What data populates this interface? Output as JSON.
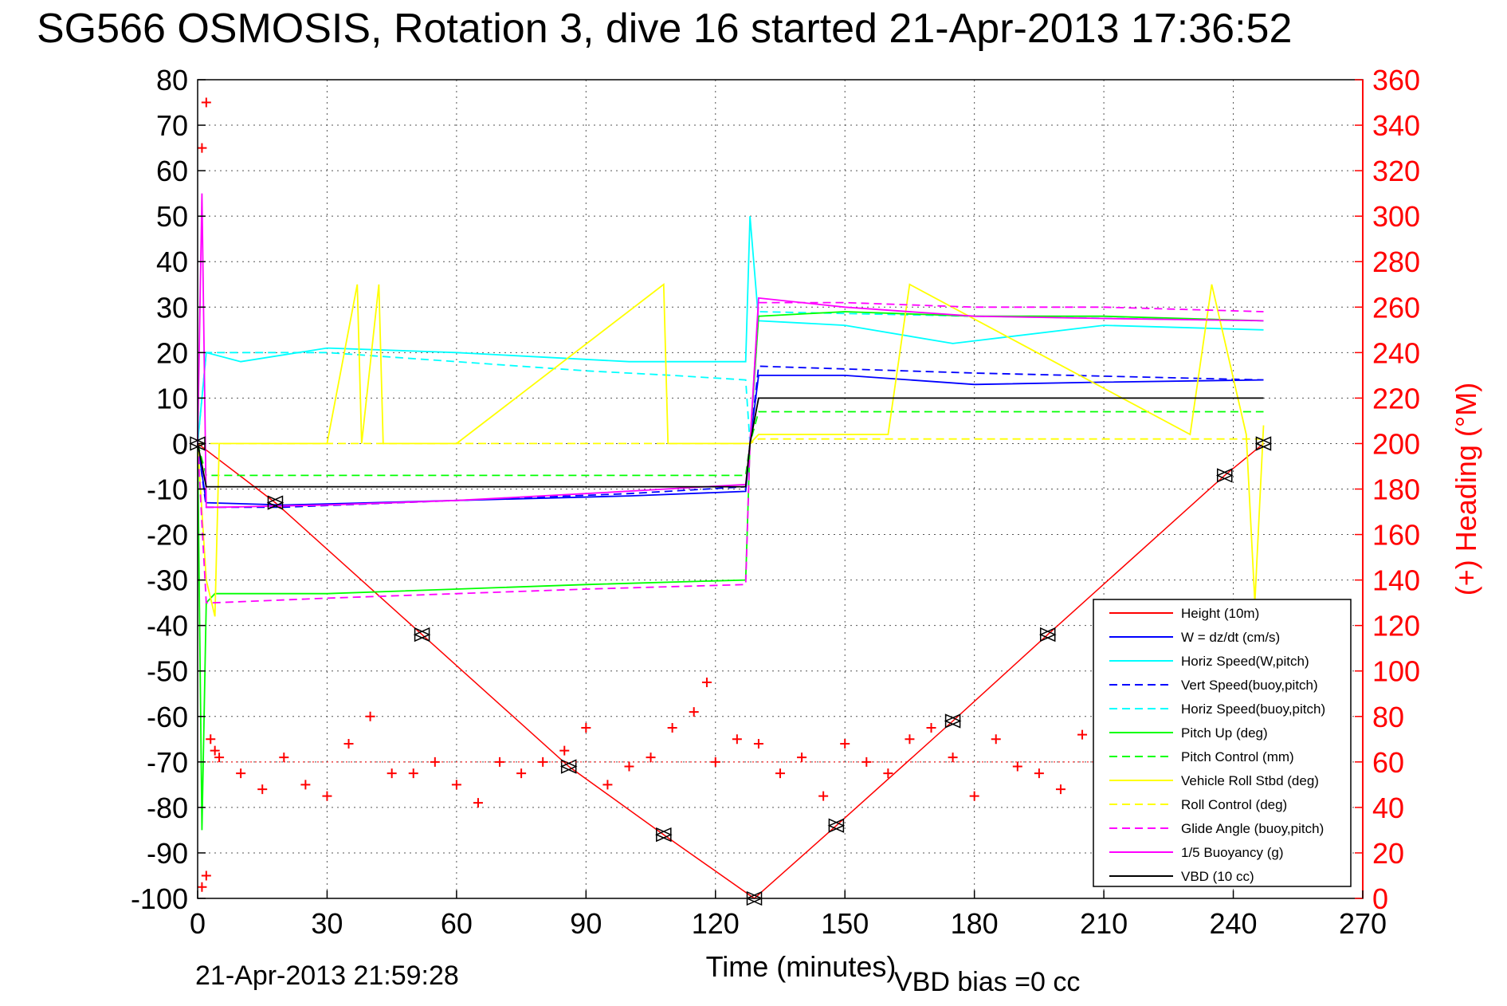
{
  "title": "SG566 OSMOSIS, Rotation 3, dive 16 started 21-Apr-2013 17:36:52",
  "timestamp": "21-Apr-2013 21:59:28",
  "vbd_bias": "VBD bias =0 cc",
  "chart_data": {
    "type": "line",
    "xlabel": "Time (minutes)",
    "ylabel": "",
    "y2label": "(+) Heading (°M)",
    "xlim": [
      0,
      270
    ],
    "ylim": [
      -100,
      80
    ],
    "y2lim": [
      0,
      360
    ],
    "xticks": [
      0,
      30,
      60,
      90,
      120,
      150,
      180,
      210,
      240,
      270
    ],
    "yticks": [
      80,
      70,
      60,
      50,
      40,
      30,
      20,
      10,
      0,
      -10,
      -20,
      -30,
      -40,
      -50,
      -60,
      -70,
      -80,
      -90,
      -100
    ],
    "y2ticks": [
      360,
      340,
      320,
      300,
      280,
      260,
      240,
      220,
      200,
      180,
      160,
      140,
      120,
      100,
      80,
      60,
      40,
      20,
      0
    ],
    "grid": true,
    "legend_position": "bottom-right",
    "colors": {
      "red": "#ff0000",
      "blue": "#0000ff",
      "cyan": "#00ffff",
      "green": "#00ff00",
      "yellow": "#ffff00",
      "magenta": "#ff00ff",
      "black": "#000000",
      "heading": "#ff0000"
    },
    "series": [
      {
        "name": "Height (10m)",
        "color": "red",
        "style": "solid",
        "x": [
          0,
          18,
          52,
          86,
          108,
          129,
          148,
          175,
          197,
          238,
          247
        ],
        "y": [
          0,
          -13,
          -42,
          -71,
          -86,
          -100,
          -84,
          -61,
          -42,
          -7,
          0
        ]
      },
      {
        "name": "W = dz/dt (cm/s)",
        "color": "blue",
        "style": "solid",
        "x": [
          0,
          2,
          20,
          60,
          100,
          127,
          128,
          130,
          150,
          180,
          210,
          247
        ],
        "y": [
          0,
          -13,
          -13.5,
          -12.5,
          -11.5,
          -10.5,
          0,
          15,
          15,
          13,
          13.5,
          14
        ]
      },
      {
        "name": "Horiz Speed(W,pitch)",
        "color": "cyan",
        "style": "solid",
        "x": [
          0,
          2,
          10,
          30,
          60,
          100,
          127,
          128,
          130,
          150,
          175,
          210,
          247
        ],
        "y": [
          0,
          20,
          18,
          21,
          20,
          18,
          18,
          50,
          27,
          26,
          22,
          26,
          25
        ]
      },
      {
        "name": "Vert Speed(buoy,pitch)",
        "color": "blue",
        "style": "dashed",
        "x": [
          0,
          2,
          20,
          60,
          100,
          127,
          128,
          130,
          180,
          247
        ],
        "y": [
          0,
          -14,
          -14,
          -12.5,
          -11,
          -9.5,
          0,
          17,
          15.5,
          14
        ]
      },
      {
        "name": "Horiz Speed(buoy,pitch)",
        "color": "cyan",
        "style": "dashed",
        "x": [
          0,
          2,
          30,
          60,
          90,
          110,
          127,
          128,
          130,
          180,
          247
        ],
        "y": [
          0,
          20,
          20,
          18,
          16,
          15,
          14,
          0,
          29,
          28,
          27
        ]
      },
      {
        "name": "Pitch Up (deg)",
        "color": "green",
        "style": "solid",
        "x": [
          0,
          1,
          2,
          4,
          30,
          60,
          90,
          127,
          128,
          130,
          150,
          180,
          210,
          247
        ],
        "y": [
          0,
          -85,
          -35,
          -33,
          -33,
          -32,
          -31,
          -30,
          0,
          28,
          29,
          28,
          28,
          27
        ]
      },
      {
        "name": "Pitch Control (mm)",
        "color": "green",
        "style": "dashed",
        "x": [
          0,
          2,
          127,
          128,
          130,
          247
        ],
        "y": [
          0,
          -7,
          -7,
          0,
          7,
          7
        ]
      },
      {
        "name": "Vehicle Roll Stbd (deg)",
        "color": "yellow",
        "style": "solid",
        "x": [
          0,
          2,
          4,
          5,
          30,
          37,
          38,
          42,
          43,
          60,
          108,
          109,
          127,
          128,
          130,
          160,
          165,
          230,
          235,
          243,
          245,
          247
        ],
        "y": [
          0,
          -30,
          -38,
          0,
          0,
          35,
          0,
          35,
          0,
          0,
          35,
          0,
          0,
          0,
          2,
          2,
          35,
          2,
          35,
          2,
          -35,
          4
        ]
      },
      {
        "name": "Roll Control (deg)",
        "color": "yellow",
        "style": "dashed",
        "x": [
          0,
          2,
          127,
          128,
          130,
          247
        ],
        "y": [
          0,
          0,
          0,
          0,
          1,
          1
        ]
      },
      {
        "name": "Glide Angle (buoy,pitch)",
        "color": "magenta",
        "style": "dashed",
        "x": [
          0,
          2,
          4,
          30,
          60,
          90,
          127,
          128,
          130,
          150,
          180,
          210,
          247
        ],
        "y": [
          0,
          -35,
          -35,
          -34,
          -33,
          -32,
          -31,
          0,
          31,
          31,
          30,
          30,
          29
        ]
      },
      {
        "name": "1/5 Buoyancy (g)",
        "color": "magenta",
        "style": "solid",
        "x": [
          0,
          1,
          2,
          5,
          30,
          60,
          90,
          127,
          128,
          130,
          150,
          180,
          210,
          247
        ],
        "y": [
          0,
          55,
          -14,
          -14,
          -13.5,
          -12.5,
          -11,
          -9,
          0,
          32,
          30,
          28,
          27.5,
          27
        ]
      },
      {
        "name": "VBD (10 cc)",
        "color": "black",
        "style": "solid",
        "x": [
          0,
          2,
          127,
          128,
          130,
          247
        ],
        "y": [
          0,
          -9.5,
          -9.5,
          0,
          10,
          10
        ]
      }
    ],
    "heading": {
      "axis": "right",
      "marker": "+",
      "color": "heading",
      "x": [
        1,
        1,
        2,
        2,
        3,
        4,
        5,
        10,
        15,
        20,
        25,
        30,
        35,
        40,
        45,
        50,
        55,
        60,
        65,
        70,
        75,
        80,
        85,
        90,
        95,
        100,
        105,
        110,
        115,
        118,
        120,
        125,
        130,
        135,
        140,
        145,
        150,
        155,
        160,
        165,
        170,
        175,
        180,
        185,
        190,
        195,
        200,
        205,
        210
      ],
      "y": [
        5,
        330,
        10,
        350,
        70,
        65,
        62,
        55,
        48,
        62,
        50,
        45,
        68,
        80,
        55,
        55,
        60,
        50,
        42,
        60,
        55,
        60,
        65,
        75,
        50,
        58,
        62,
        75,
        82,
        95,
        60,
        70,
        68,
        55,
        62,
        45,
        68,
        60,
        55,
        70,
        75,
        62,
        45,
        70,
        58,
        55,
        48,
        72,
        65
      ]
    }
  }
}
